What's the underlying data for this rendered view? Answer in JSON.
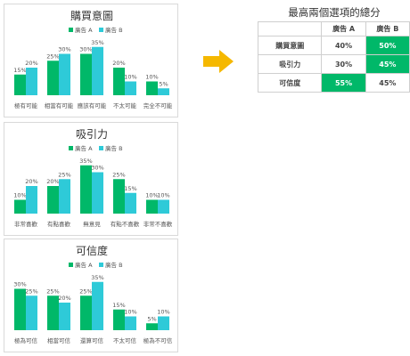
{
  "chart_data": [
    {
      "type": "bar",
      "title": "購買意圖",
      "legend": [
        "廣告 A",
        "廣告 B"
      ],
      "legend_position": "top",
      "categories": [
        "極有可能",
        "相當有可能",
        "應該有可能",
        "不太可能",
        "完全不可能"
      ],
      "series": [
        {
          "name": "廣告 A",
          "values": [
            15,
            25,
            30,
            20,
            10
          ],
          "labels": [
            "15%",
            "25%",
            "30%",
            "20%",
            "10%"
          ]
        },
        {
          "name": "廣告 B",
          "values": [
            20,
            30,
            35,
            10,
            5
          ],
          "labels": [
            "20%",
            "30%",
            "35%",
            "10%",
            "5%"
          ]
        }
      ],
      "ylim": [
        0,
        40
      ],
      "grid": false
    },
    {
      "type": "bar",
      "title": "吸引力",
      "legend": [
        "廣告 A",
        "廣告 B"
      ],
      "legend_position": "top",
      "categories": [
        "非常喜歡",
        "有點喜歡",
        "無意見",
        "有點不喜歡",
        "非常不喜歡"
      ],
      "series": [
        {
          "name": "廣告 A",
          "values": [
            10,
            20,
            35,
            25,
            10
          ],
          "labels": [
            "10%",
            "20%",
            "35%",
            "25%",
            "10%"
          ]
        },
        {
          "name": "廣告 B",
          "values": [
            20,
            25,
            30,
            15,
            10
          ],
          "labels": [
            "20%",
            "25%",
            "30%",
            "15%",
            "10%"
          ]
        }
      ],
      "ylim": [
        0,
        40
      ],
      "grid": false
    },
    {
      "type": "bar",
      "title": "可信度",
      "legend": [
        "廣告 A",
        "廣告 B"
      ],
      "legend_position": "top",
      "categories": [
        "極為可信",
        "相當可信",
        "還算可信",
        "不太可信",
        "極為不可信"
      ],
      "series": [
        {
          "name": "廣告 A",
          "values": [
            30,
            25,
            25,
            15,
            5
          ],
          "labels": [
            "30%",
            "25%",
            "25%",
            "15%",
            "5%"
          ]
        },
        {
          "name": "廣告 B",
          "values": [
            25,
            20,
            35,
            10,
            10
          ],
          "labels": [
            "25%",
            "20%",
            "35%",
            "10%",
            "10%"
          ]
        }
      ],
      "ylim": [
        0,
        40
      ],
      "grid": false
    }
  ],
  "colors": {
    "series_a": "#00b869",
    "series_b": "#2ecad8",
    "arrow": "#f5b800",
    "highlight": "#00b869"
  },
  "summary": {
    "title": "最高兩個選項的總分",
    "headers": [
      "",
      "廣告 A",
      "廣告 B"
    ],
    "rows": [
      {
        "label": "購買意圖",
        "a": "40%",
        "b": "50%",
        "highlight": "b"
      },
      {
        "label": "吸引力",
        "a": "30%",
        "b": "45%",
        "highlight": "b"
      },
      {
        "label": "可信度",
        "a": "55%",
        "b": "45%",
        "highlight": "a"
      }
    ]
  }
}
